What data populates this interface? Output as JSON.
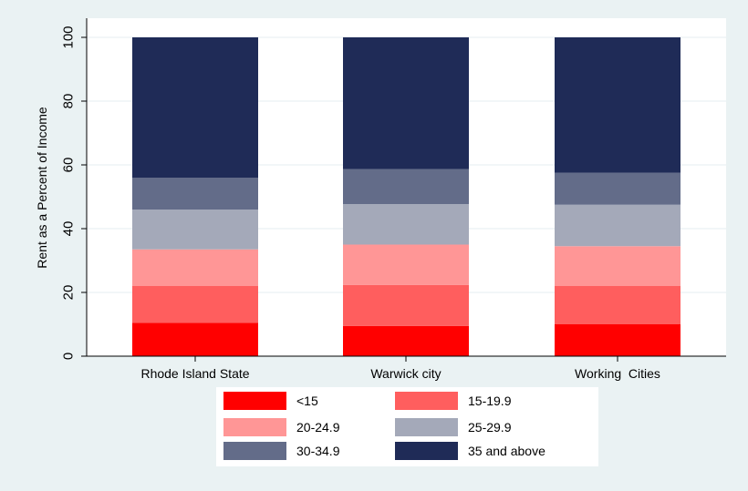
{
  "chart_data": {
    "type": "bar",
    "stacked": true,
    "ylabel": "Rent as a Percent of Income",
    "ylim": [
      0,
      100
    ],
    "yticks": [
      0,
      20,
      40,
      60,
      80,
      100
    ],
    "categories": [
      "Rhode Island State",
      "Warwick city",
      "Working  Cities"
    ],
    "series": [
      {
        "name": "<15",
        "color": "#ff0000",
        "values": [
          10.5,
          9.5,
          10.0
        ]
      },
      {
        "name": "15-19.9",
        "color": "#ff5e5e",
        "values": [
          11.5,
          12.8,
          12.0
        ]
      },
      {
        "name": "20-24.9",
        "color": "#ff9696",
        "values": [
          11.5,
          12.7,
          12.5
        ]
      },
      {
        "name": "25-29.9",
        "color": "#a4a9b9",
        "values": [
          12.5,
          12.7,
          13.0
        ]
      },
      {
        "name": "30-34.9",
        "color": "#636c89",
        "values": [
          10.0,
          11.0,
          10.0
        ]
      },
      {
        "name": "35 and above",
        "color": "#1f2b57",
        "values": [
          44.0,
          41.3,
          42.5
        ]
      }
    ],
    "grid": {
      "y": true
    },
    "legend": {
      "position": "bottom",
      "columns": 2
    }
  }
}
